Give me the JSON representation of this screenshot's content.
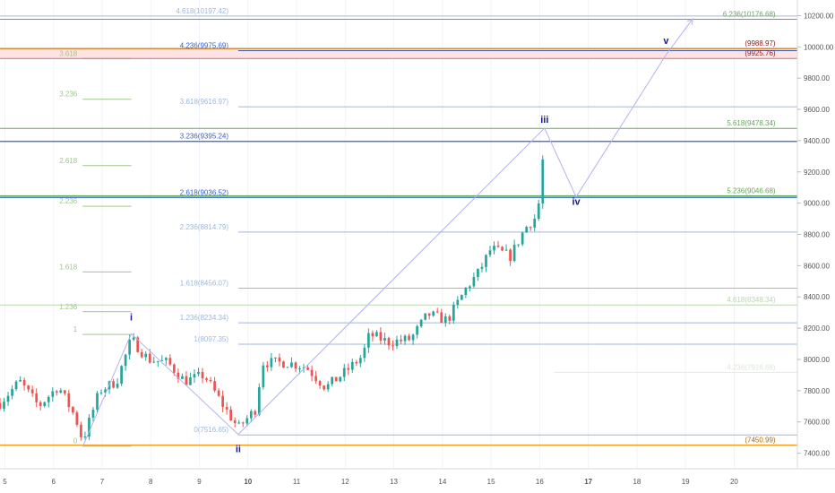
{
  "colors": {
    "up": "#26a69a",
    "down": "#ef5350",
    "wave_path": "#b3b3f0",
    "wave_label": "#1a1a8c",
    "price_axis_text": "#555555",
    "time_axis_text": "#555555",
    "grid": "#f0f3fa"
  },
  "chart_data": {
    "type": "candlestick",
    "title": "",
    "ylim": [
      7300,
      10300
    ],
    "xlim": [
      4.9,
      21.3
    ],
    "y_axis": {
      "ticks": [
        7400,
        7600,
        7800,
        8000,
        8200,
        8400,
        8600,
        8800,
        9000,
        9200,
        9400,
        9600,
        9800,
        10000,
        10200
      ],
      "tick_labels": [
        "7400.00",
        "7600.00",
        "7800.00",
        "8000.00",
        "8200.00",
        "8400.00",
        "8600.00",
        "8800.00",
        "9000.00",
        "9200.00",
        "9400.00",
        "9600.00",
        "9800.00",
        "10000.00",
        "10200.00"
      ]
    },
    "x_axis": {
      "ticks": [
        5,
        6,
        7,
        8,
        9,
        10,
        11,
        12,
        13,
        14,
        15,
        16,
        17,
        18,
        19,
        20
      ],
      "tick_labels": [
        "5",
        "6",
        "7",
        "8",
        "9",
        "10",
        "11",
        "12",
        "13",
        "14",
        "15",
        "16",
        "17",
        "18",
        "19",
        "20"
      ],
      "bold": [
        "10",
        "17"
      ]
    },
    "anchors": [
      {
        "x": 4.9,
        "y": 7720
      },
      {
        "x": 5.3,
        "y": 7860
      },
      {
        "x": 5.7,
        "y": 7700
      },
      {
        "x": 6.1,
        "y": 7830
      },
      {
        "x": 6.45,
        "y": 7630
      },
      {
        "x": 6.6,
        "y": 7480
      },
      {
        "x": 6.95,
        "y": 7800
      },
      {
        "x": 7.3,
        "y": 7860
      },
      {
        "x": 7.6,
        "y": 8130
      },
      {
        "x": 7.95,
        "y": 8000
      },
      {
        "x": 8.35,
        "y": 7980
      },
      {
        "x": 8.7,
        "y": 7860
      },
      {
        "x": 9.1,
        "y": 7900
      },
      {
        "x": 9.5,
        "y": 7700
      },
      {
        "x": 9.8,
        "y": 7560
      },
      {
        "x": 10.15,
        "y": 7680
      },
      {
        "x": 10.3,
        "y": 7980
      },
      {
        "x": 10.8,
        "y": 7980
      },
      {
        "x": 11.2,
        "y": 7950
      },
      {
        "x": 11.6,
        "y": 7820
      },
      {
        "x": 12.0,
        "y": 7920
      },
      {
        "x": 12.35,
        "y": 8020
      },
      {
        "x": 12.5,
        "y": 8160
      },
      {
        "x": 12.9,
        "y": 8110
      },
      {
        "x": 13.35,
        "y": 8130
      },
      {
        "x": 13.7,
        "y": 8290
      },
      {
        "x": 14.1,
        "y": 8250
      },
      {
        "x": 14.5,
        "y": 8460
      },
      {
        "x": 14.75,
        "y": 8560
      },
      {
        "x": 15.0,
        "y": 8710
      },
      {
        "x": 15.4,
        "y": 8660
      },
      {
        "x": 15.7,
        "y": 8840
      },
      {
        "x": 15.95,
        "y": 8920
      },
      {
        "x": 16.1,
        "y": 9320
      }
    ],
    "candle_step": 0.0833,
    "waves": [
      {
        "label": "i",
        "x": 7.6,
        "y": 8250
      },
      {
        "label": "ii",
        "x": 9.8,
        "y": 7405
      },
      {
        "label": "iii",
        "x": 16.1,
        "y": 9515
      },
      {
        "label": "iv",
        "x": 16.75,
        "y": 8990
      },
      {
        "label": "v",
        "x": 18.6,
        "y": 10020
      }
    ],
    "wave_path": [
      {
        "x": 6.6,
        "y": 7440
      },
      {
        "x": 7.6,
        "y": 8165
      },
      {
        "x": 9.8,
        "y": 7520
      },
      {
        "x": 16.1,
        "y": 9480
      },
      {
        "x": 16.75,
        "y": 9040
      },
      {
        "x": 18.6,
        "y": 9950
      },
      {
        "x": 19.15,
        "y": 10180
      }
    ],
    "left_fib": [
      {
        "label": "0",
        "price": 7445,
        "x1": 6.6,
        "x2": 7.6,
        "color": "#9cc98a"
      },
      {
        "label": "1",
        "price": 8160,
        "x1": 6.6,
        "x2": 7.6,
        "color": "#9cc98a"
      },
      {
        "label": "1.236",
        "price": 8305,
        "x1": 6.6,
        "x2": 7.6,
        "color": "#9cc98a"
      },
      {
        "label": "1.618",
        "price": 8560,
        "x1": 6.6,
        "x2": 7.6,
        "color": "#9cc98a"
      },
      {
        "label": "2.236",
        "price": 8980,
        "x1": 6.6,
        "x2": 7.6,
        "color": "#9cc98a"
      },
      {
        "label": "2.618",
        "price": 9240,
        "x1": 6.6,
        "x2": 7.6,
        "color": "#9cc98a"
      },
      {
        "label": "3.236",
        "price": 9665,
        "x1": 6.6,
        "x2": 7.6,
        "color": "#9cc98a"
      },
      {
        "label": "3.618",
        "price": 9925,
        "x1": 6.6,
        "x2": 7.6,
        "color": "#9cc98a"
      }
    ],
    "fib_lines": [
      {
        "label": "4.618(10197.42)",
        "price": 10197.42,
        "x1": 4.9,
        "x2": 21.3,
        "label_x": 9.6,
        "align": "end",
        "color": "#9db8de",
        "text": "#9db8de",
        "width": 1
      },
      {
        "label": "4.236(9975.69)",
        "price": 9975.69,
        "x1": 9.8,
        "x2": 21.3,
        "label_x": 9.6,
        "align": "end",
        "color": "#3a5fc4",
        "text": "#3a5fc4",
        "width": 1
      },
      {
        "label": "3.618(9616.97)",
        "price": 9616.97,
        "x1": 9.8,
        "x2": 21.3,
        "label_x": 9.6,
        "align": "end",
        "color": "#9db8de",
        "text": "#9db8de",
        "width": 1
      },
      {
        "label": "3.236(9395.24)",
        "price": 9395.24,
        "x1": 4.9,
        "x2": 21.3,
        "label_x": 9.6,
        "align": "end",
        "color": "#3a5fc4",
        "text": "#3a5fc4",
        "width": 1.3
      },
      {
        "label": "2.618(9036.52)",
        "price": 9036.52,
        "x1": 4.9,
        "x2": 21.3,
        "label_x": 9.6,
        "align": "end",
        "color": "#3a5fc4",
        "text": "#3a5fc4",
        "width": 1.3
      },
      {
        "label": "2.236(8814.79)",
        "price": 8814.79,
        "x1": 9.8,
        "x2": 21.3,
        "label_x": 9.6,
        "align": "end",
        "color": "#9db8de",
        "text": "#9db8de",
        "width": 1
      },
      {
        "label": "1.618(8456.07)",
        "price": 8456.07,
        "x1": 9.8,
        "x2": 21.3,
        "label_x": 9.6,
        "align": "end",
        "color": "#9db8de",
        "text": "#9db8de",
        "width": 1
      },
      {
        "label": "1.236(8234.34)",
        "price": 8234.34,
        "x1": 9.8,
        "x2": 21.3,
        "label_x": 9.6,
        "align": "end",
        "color": "#9db8de",
        "text": "#9db8de",
        "width": 1
      },
      {
        "label": "1(8097.35)",
        "price": 8097.35,
        "x1": 9.8,
        "x2": 21.3,
        "label_x": 9.6,
        "align": "end",
        "color": "#9db8de",
        "text": "#9db8de",
        "width": 1
      },
      {
        "label": "0(7516.65)",
        "price": 7516.65,
        "x1": 9.8,
        "x2": 21.3,
        "label_x": 9.6,
        "align": "end",
        "color": "#9db8de",
        "text": "#9db8de",
        "width": 1
      },
      {
        "label": "6.236(10176.68)",
        "price": 10176.68,
        "x1": 4.9,
        "x2": 21.3,
        "label_x": 20.85,
        "align": "end",
        "color": "#62a85a",
        "text": "#62a85a",
        "width": 1
      },
      {
        "label": "5.618(9478.34)",
        "price": 9478.34,
        "x1": 4.9,
        "x2": 21.3,
        "label_x": 20.85,
        "align": "end",
        "color": "#62a85a",
        "text": "#62a85a",
        "width": 1
      },
      {
        "label": "5.236(9046.68)",
        "price": 9046.68,
        "x1": 4.9,
        "x2": 21.3,
        "label_x": 20.85,
        "align": "end",
        "color": "#62a85a",
        "text": "#62a85a",
        "width": 1.3
      },
      {
        "label": "4.618(8348.34)",
        "price": 8348.34,
        "x1": 4.9,
        "x2": 21.3,
        "label_x": 20.85,
        "align": "end",
        "color": "#b9d6ad",
        "text": "#b9d6ad",
        "width": 1
      },
      {
        "label": "4.236(7916.68)",
        "price": 7916.68,
        "x1": 16.3,
        "x2": 21.3,
        "label_x": 20.85,
        "align": "end",
        "color": "#e3efde",
        "text": "#dbe8d6",
        "width": 1
      },
      {
        "label": "(9988.97)",
        "price": 9988.97,
        "x1": 4.9,
        "x2": 21.3,
        "label_x": 20.85,
        "align": "end",
        "color": "#d08a3a",
        "text": "#8b1a1a",
        "width": 1.5
      },
      {
        "label": "(9925.76)",
        "price": 9925.76,
        "x1": 4.9,
        "x2": 21.3,
        "label_x": 20.85,
        "align": "end",
        "color": "#e36a6a",
        "text": "#8b1a1a",
        "width": 1
      },
      {
        "label": "(7450.99)",
        "price": 7450.99,
        "x1": 4.9,
        "x2": 21.3,
        "label_x": 20.85,
        "align": "end",
        "color": "#f0a020",
        "text": "#b06a00",
        "width": 1.5
      }
    ],
    "band": {
      "from": 9925.76,
      "to": 9988.97,
      "color": "#fde3e3"
    }
  }
}
